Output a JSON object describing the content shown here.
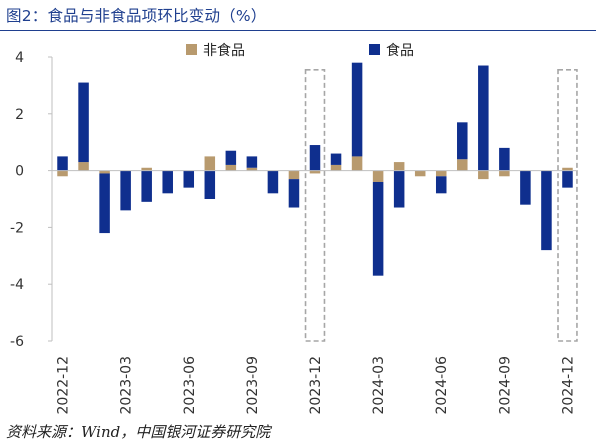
{
  "figure_title": "图2：食品与非食品项环比变动（%）",
  "source_note": "资料来源：Wind，中国银河证券研究院",
  "colors": {
    "food": "#0f2f8e",
    "nonfood": "#b89a6e",
    "box": "#a6a6a6",
    "axis": "#bfbfbf",
    "title": "#1f3f8f"
  },
  "chart_data": {
    "type": "bar",
    "stacked": true,
    "ylim": [
      -6,
      4
    ],
    "yticks": [
      -6,
      -4,
      -2,
      0,
      2,
      4
    ],
    "grid": false,
    "legend_position": "top",
    "categories": [
      "2022-12",
      "2023-01",
      "2023-02",
      "2023-03",
      "2023-04",
      "2023-05",
      "2023-06",
      "2023-07",
      "2023-08",
      "2023-09",
      "2023-10",
      "2023-11",
      "2023-12",
      "2024-01",
      "2024-02",
      "2024-03",
      "2024-04",
      "2024-05",
      "2024-06",
      "2024-07",
      "2024-08",
      "2024-09",
      "2024-10",
      "2024-11",
      "2024-12"
    ],
    "tick_labels": [
      "2022-12",
      "2023-03",
      "2023-06",
      "2023-09",
      "2023-12",
      "2024-03",
      "2024-06",
      "2024-09",
      "2024-12"
    ],
    "tick_indices": [
      0,
      3,
      6,
      9,
      12,
      15,
      18,
      21,
      24
    ],
    "series": [
      {
        "name": "非食品",
        "key": "nonfood",
        "values": [
          -0.2,
          0.3,
          -0.1,
          0.0,
          0.1,
          0.0,
          0.0,
          0.5,
          0.2,
          0.1,
          0.0,
          -0.3,
          -0.1,
          0.2,
          0.5,
          -0.4,
          0.3,
          -0.2,
          -0.2,
          0.4,
          -0.3,
          -0.2,
          0.0,
          0.0,
          0.1
        ]
      },
      {
        "name": "食品",
        "key": "food",
        "values": [
          0.5,
          2.8,
          -2.1,
          -1.4,
          -1.1,
          -0.8,
          -0.6,
          -1.0,
          0.5,
          0.4,
          -0.8,
          -1.0,
          0.9,
          0.4,
          3.3,
          -3.3,
          -1.3,
          0.0,
          -0.6,
          1.3,
          3.7,
          0.8,
          -1.2,
          -2.8,
          -0.6
        ]
      }
    ],
    "highlight_boxes": [
      "2023-12",
      "2024-12"
    ]
  }
}
